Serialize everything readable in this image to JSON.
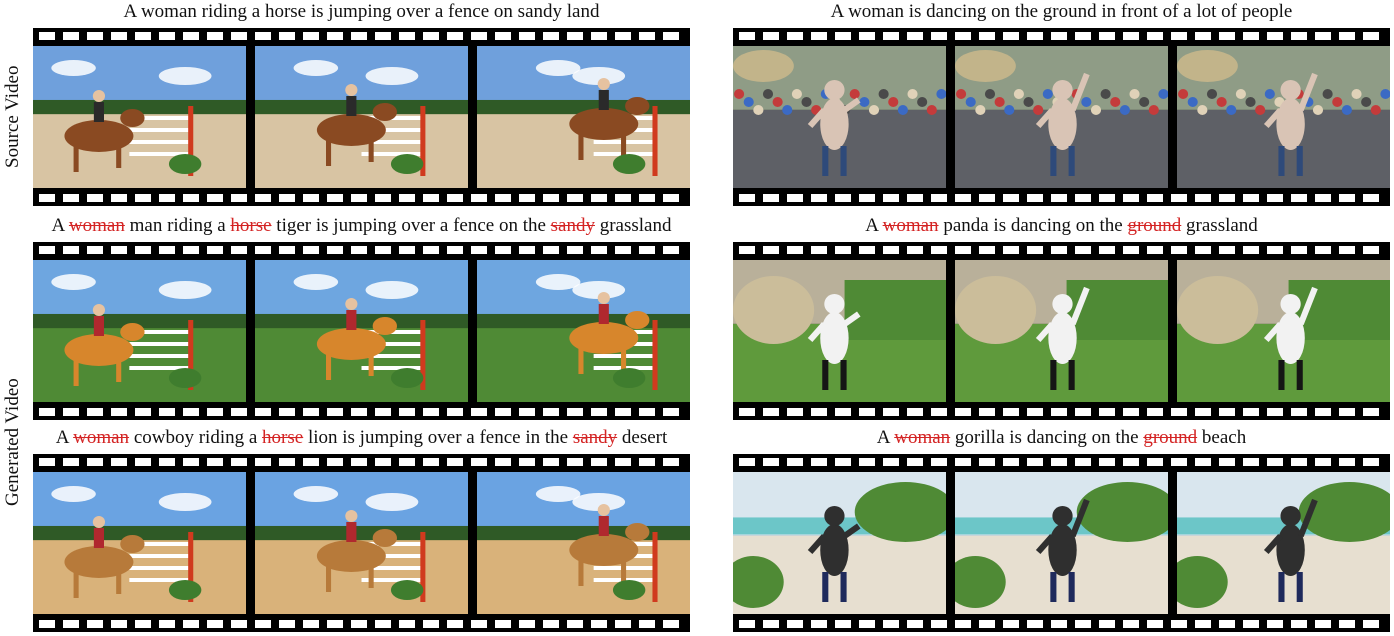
{
  "row_labels": {
    "source": "Source Video",
    "generated": "Generated Video"
  },
  "panels": [
    {
      "caption": [
        {
          "t": "A woman riding a horse is jumping over a fence on sandy land",
          "s": "n"
        }
      ],
      "scene": "horse-jump",
      "colors": {
        "sky": "#6fa0dc",
        "ground": "#d8c4a3",
        "subject": "#8a4a22",
        "rider": "#2a2a2a"
      }
    },
    {
      "caption": [
        {
          "t": "A woman is dancing on the ground in front of a lot of people",
          "s": "n"
        }
      ],
      "scene": "dance-crowd",
      "colors": {
        "sky": "#8f9c86",
        "ground": "#5e6066",
        "subject": "#d9c4b5",
        "rider": "#2e4a7a"
      }
    },
    {
      "caption": [
        {
          "t": "A ",
          "s": "n"
        },
        {
          "t": "woman",
          "s": "d"
        },
        {
          "t": " man riding a ",
          "s": "n"
        },
        {
          "t": "horse",
          "s": "d"
        },
        {
          "t": " tiger is jumping over a fence on the ",
          "s": "n"
        },
        {
          "t": "sandy",
          "s": "d"
        },
        {
          "t": " grassland",
          "s": "n"
        }
      ],
      "scene": "horse-jump",
      "colors": {
        "sky": "#6ea6e0",
        "ground": "#4f8a35",
        "subject": "#d7862c",
        "rider": "#b0282e"
      }
    },
    {
      "caption": [
        {
          "t": "A ",
          "s": "n"
        },
        {
          "t": "woman",
          "s": "d"
        },
        {
          "t": " panda is dancing on the ",
          "s": "n"
        },
        {
          "t": "ground",
          "s": "d"
        },
        {
          "t": " grassland",
          "s": "n"
        }
      ],
      "scene": "dance-grass",
      "colors": {
        "sky": "#b9b09a",
        "ground": "#5f9a3c",
        "subject": "#f2f2f2",
        "rider": "#151515"
      }
    },
    {
      "caption": [
        {
          "t": "A ",
          "s": "n"
        },
        {
          "t": "woman",
          "s": "d"
        },
        {
          "t": " cowboy riding a ",
          "s": "n"
        },
        {
          "t": "horse",
          "s": "d"
        },
        {
          "t": " lion is jumping over a fence in the ",
          "s": "n"
        },
        {
          "t": "sandy",
          "s": "d"
        },
        {
          "t": " desert",
          "s": "n"
        }
      ],
      "scene": "horse-jump",
      "colors": {
        "sky": "#6aa3e2",
        "ground": "#d9b27a",
        "subject": "#b77a3a",
        "rider": "#b0282e"
      }
    },
    {
      "caption": [
        {
          "t": "A ",
          "s": "n"
        },
        {
          "t": "woman",
          "s": "d"
        },
        {
          "t": " gorilla is dancing on the ",
          "s": "n"
        },
        {
          "t": "ground",
          "s": "d"
        },
        {
          "t": " beach",
          "s": "n"
        }
      ],
      "scene": "dance-beach",
      "colors": {
        "sky": "#d9e6ee",
        "ground": "#e7dfd0",
        "subject": "#2f2f2f",
        "rider": "#1f2a5c"
      }
    }
  ]
}
